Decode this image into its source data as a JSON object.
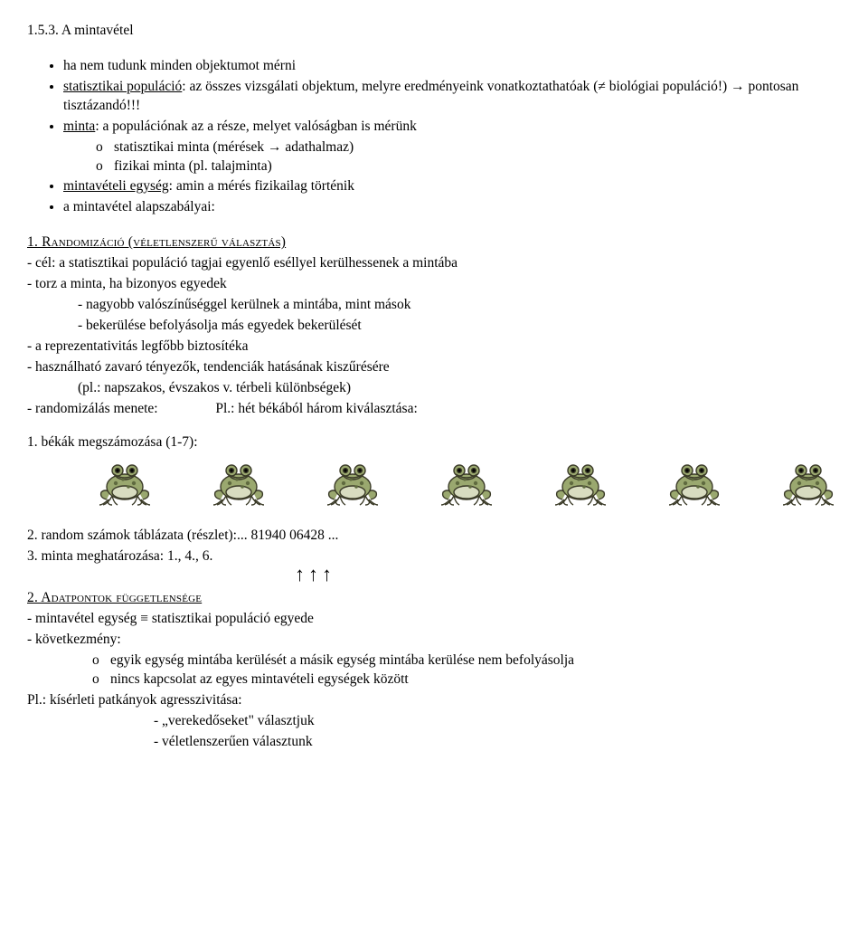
{
  "heading": "1.5.3. A mintavétel",
  "bullets": {
    "b1": "ha nem tudunk minden objektumot mérni",
    "b2a": "statisztikai populáció",
    "b2b": ": az összes vizsgálati objektum, melyre eredményeink vonatkoztathatóak (≠ biológiai populáció!) → pontosan tisztázandó!!!",
    "b3a": "minta",
    "b3b": ": a populációnak az a része, melyet valóságban is mérünk",
    "b3s1": "statisztikai minta (mérések → adathalmaz)",
    "b3s2": "fizikai minta (pl. talajminta)",
    "b4a": "mintavételi egység",
    "b4b": ": amin a mérés fizikailag történik",
    "b5": "a mintavétel alapszabályai:"
  },
  "rule1": {
    "title": "1. Randomizáció (véletlenszerű választás)",
    "l1": "- cél: a statisztikai populáció tagjai egyenlő eséllyel kerülhessenek a mintába",
    "l2": "- torz a minta, ha bizonyos egyedek",
    "l2a": "- nagyobb valószínűséggel kerülnek a mintába, mint mások",
    "l2b": "- bekerülése befolyásolja más egyedek bekerülését",
    "l3": "- a reprezentativitás legfőbb biztosítéka",
    "l4": "- használható zavaró tényezők, tendenciák hatásának kiszűrésére",
    "l4a": "(pl.: napszakos, évszakos v. térbeli különbségek)",
    "l5a": "- randomizálás menete:",
    "l5b": "Pl.: hét békából három kiválasztása:",
    "step1": "1. békák megszámozása (1-7):",
    "step2": "2. random számok táblázata (részlet):... 81940   06428 ...",
    "step3": "3. minta meghatározása: 1., 4., 6."
  },
  "rule2": {
    "title": "2. Adatpontok függetlensége",
    "l1": "- mintavétel egység ≡ statisztikai populáció egyede",
    "l2": "- következmény:",
    "l2a": "egyik egység mintába kerülését a másik egység mintába kerülése nem befolyásolja",
    "l2b": "nincs kapcsolat az egyes mintavételi egységek között",
    "l3": "Pl.: kísérleti patkányok agresszivitása:",
    "l3a": "- „verekedőseket\" választjuk",
    "l3b": "- véletlenszerűen választunk"
  },
  "frog": {
    "body_fill": "#9aa86f",
    "body_stroke": "#3b3b28",
    "belly_fill": "#d8dcc0",
    "spot_fill": "#5f6a3f"
  },
  "frog_count": 7
}
